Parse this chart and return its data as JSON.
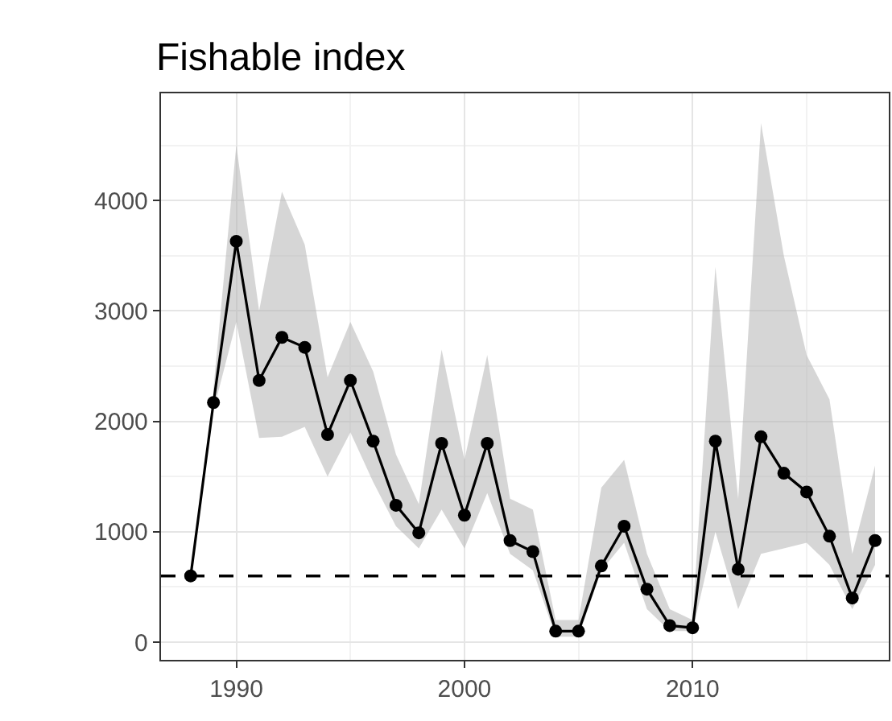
{
  "chart_data": {
    "type": "line",
    "title": "Fishable index",
    "x": [
      1988,
      1989,
      1990,
      1991,
      1992,
      1993,
      1994,
      1995,
      1996,
      1997,
      1998,
      1999,
      2000,
      2001,
      2002,
      2003,
      2004,
      2005,
      2006,
      2007,
      2008,
      2009,
      2010,
      2011,
      2012,
      2013,
      2014,
      2015,
      2016,
      2017,
      2018
    ],
    "series": [
      {
        "color": "#000000",
        "values": [
          600,
          2170,
          3630,
          2370,
          2760,
          2670,
          1880,
          2370,
          1820,
          1240,
          990,
          1800,
          1150,
          1800,
          920,
          820,
          100,
          100,
          690,
          1050,
          480,
          150,
          130,
          1820,
          660,
          1860,
          1530,
          1360,
          960,
          400,
          920
        ],
        "lower": [
          null,
          2100,
          2900,
          1850,
          1860,
          1950,
          1500,
          1900,
          1450,
          1050,
          850,
          1200,
          850,
          1350,
          800,
          650,
          50,
          50,
          650,
          900,
          300,
          100,
          100,
          1000,
          300,
          800,
          850,
          900,
          700,
          300,
          700
        ],
        "upper": [
          null,
          2300,
          4500,
          3000,
          4080,
          3600,
          2400,
          2900,
          2450,
          1700,
          1250,
          2650,
          1650,
          2600,
          1300,
          1200,
          200,
          200,
          1400,
          1650,
          800,
          300,
          200,
          3400,
          1300,
          4700,
          3500,
          2600,
          2200,
          800,
          1600
        ]
      }
    ],
    "xlim": [
      1986.7,
      2018.6
    ],
    "xticks": [
      1990,
      2000,
      2010
    ],
    "ylim": [
      -160,
      4970
    ],
    "yticks": [
      0,
      1000,
      2000,
      3000,
      4000
    ],
    "ref_lines": [
      {
        "axis": "y",
        "value": 600,
        "color": "#000000",
        "line_style": "dashed"
      }
    ],
    "grid": true,
    "marker": "circle",
    "line_style": "solid"
  }
}
